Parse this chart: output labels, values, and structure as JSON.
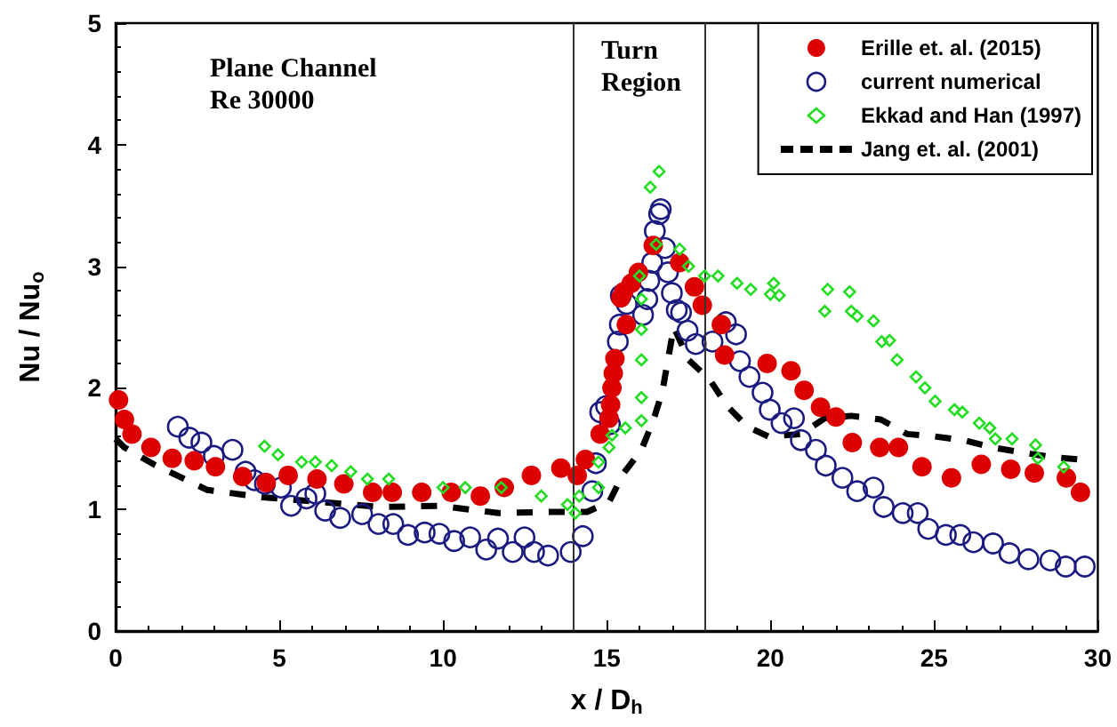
{
  "chart_data": {
    "type": "scatter",
    "xlabel": "x / D$_{h}$",
    "ylabel": "Nu / Nu$_{o}$",
    "xlim": [
      0,
      30
    ],
    "xticks": [
      0,
      5,
      10,
      15,
      20,
      25,
      30
    ],
    "ylim": [
      0,
      5
    ],
    "yticks": [
      0,
      1,
      2,
      3,
      4,
      5
    ],
    "grid": false,
    "legend": "top right",
    "annotations": [
      "Plane Channel\nRe 30000",
      "Turn\nRegion"
    ],
    "ref_lines": [
      {
        "axis": "x",
        "value": 14,
        "color": "#333333"
      },
      {
        "axis": "x",
        "value": 18,
        "color": "#333333"
      }
    ],
    "series": [
      {
        "name": "Erille et. al. (2015)",
        "type": "scatter",
        "marker": "circle",
        "color": "#dd0000",
        "x": [
          0.09,
          0.27,
          0.5,
          1.08,
          1.73,
          2.4,
          3.05,
          3.88,
          4.6,
          5.27,
          6.15,
          6.97,
          7.85,
          8.45,
          9.35,
          10.25,
          11.14,
          11.87,
          12.7,
          13.6,
          14.1,
          14.35,
          14.8,
          15.07,
          15.12,
          15.16,
          15.2,
          15.25,
          15.43,
          15.52,
          15.6,
          15.75,
          15.97,
          16.42,
          17.23,
          17.68,
          17.92,
          18.5,
          18.6,
          19.9,
          20.63,
          21.03,
          21.53,
          22.0,
          22.5,
          23.34,
          23.91,
          24.63,
          25.53,
          26.44,
          27.34,
          28.06,
          29.04,
          29.47
        ],
        "values": [
          1.9,
          1.74,
          1.62,
          1.51,
          1.42,
          1.4,
          1.35,
          1.27,
          1.22,
          1.28,
          1.25,
          1.21,
          1.14,
          1.14,
          1.14,
          1.14,
          1.11,
          1.18,
          1.28,
          1.34,
          1.28,
          1.41,
          1.62,
          1.75,
          1.86,
          2.0,
          2.12,
          2.24,
          2.74,
          2.79,
          2.52,
          2.86,
          2.95,
          3.17,
          3.03,
          2.83,
          2.68,
          2.52,
          2.27,
          2.2,
          2.14,
          1.98,
          1.84,
          1.76,
          1.55,
          1.51,
          1.51,
          1.35,
          1.26,
          1.37,
          1.33,
          1.3,
          1.26,
          1.14
        ]
      },
      {
        "name": "current numerical",
        "type": "scatter",
        "marker": "circle",
        "color": "#1a1a80",
        "x": [
          1.9,
          2.25,
          2.62,
          3.0,
          3.57,
          3.97,
          4.24,
          4.56,
          5.05,
          5.36,
          5.83,
          6.1,
          6.4,
          6.86,
          7.53,
          8.03,
          8.48,
          8.93,
          9.44,
          9.89,
          10.34,
          10.83,
          11.32,
          11.68,
          12.13,
          12.49,
          12.78,
          13.21,
          13.9,
          14.27,
          14.56,
          14.67,
          14.8,
          14.98,
          15.1,
          15.34,
          15.4,
          15.43,
          15.61,
          16.11,
          16.24,
          16.3,
          16.39,
          16.47,
          16.6,
          16.65,
          16.78,
          16.87,
          16.99,
          17.14,
          17.27,
          17.47,
          17.72,
          18.23,
          18.64,
          18.95,
          19.07,
          19.36,
          19.76,
          19.98,
          20.34,
          20.72,
          20.93,
          21.39,
          21.69,
          22.2,
          22.65,
          23.15,
          23.46,
          24.04,
          24.5,
          24.82,
          25.36,
          25.8,
          26.2,
          26.8,
          27.3,
          27.88,
          28.55,
          29.02,
          29.6
        ],
        "values": [
          1.68,
          1.59,
          1.55,
          1.44,
          1.49,
          1.31,
          1.24,
          1.21,
          1.18,
          1.03,
          1.09,
          1.13,
          0.99,
          0.93,
          0.96,
          0.88,
          0.88,
          0.79,
          0.81,
          0.8,
          0.74,
          0.77,
          0.67,
          0.76,
          0.65,
          0.77,
          0.65,
          0.62,
          0.65,
          0.78,
          1.15,
          1.38,
          1.8,
          1.85,
          1.7,
          2.38,
          2.52,
          2.76,
          2.69,
          2.6,
          2.73,
          2.88,
          3.03,
          3.29,
          3.43,
          3.47,
          3.15,
          2.95,
          2.78,
          2.64,
          2.62,
          2.47,
          2.36,
          2.38,
          2.54,
          2.44,
          2.22,
          2.09,
          1.96,
          1.82,
          1.71,
          1.75,
          1.57,
          1.49,
          1.36,
          1.26,
          1.15,
          1.18,
          1.02,
          0.97,
          0.97,
          0.84,
          0.79,
          0.79,
          0.73,
          0.72,
          0.64,
          0.59,
          0.58,
          0.53,
          0.53
        ]
      },
      {
        "name": "Ekkad and Han (1997)",
        "type": "scatter",
        "marker": "diamond",
        "color": "#22dd22",
        "x": [
          4.55,
          4.96,
          5.68,
          6.1,
          6.6,
          7.18,
          7.69,
          8.34,
          10.0,
          10.68,
          11.78,
          13.0,
          13.8,
          14.04,
          14.16,
          14.75,
          14.75,
          15.07,
          15.16,
          15.57,
          16.06,
          16.06,
          16.06,
          16.06,
          16.06,
          16.0,
          16.51,
          16.33,
          16.6,
          17.23,
          17.5,
          17.99,
          18.4,
          18.98,
          19.4,
          20.0,
          20.1,
          20.27,
          21.66,
          21.75,
          22.42,
          22.47,
          22.65,
          23.15,
          23.4,
          23.64,
          23.87,
          24.45,
          24.72,
          25.03,
          25.62,
          25.86,
          26.38,
          26.7,
          26.87,
          27.38,
          28.1,
          28.17,
          28.96
        ],
        "values": [
          1.52,
          1.45,
          1.39,
          1.39,
          1.36,
          1.31,
          1.25,
          1.25,
          1.18,
          1.18,
          1.18,
          1.11,
          1.04,
          0.97,
          1.11,
          1.18,
          1.39,
          1.51,
          1.61,
          1.67,
          1.73,
          1.92,
          2.23,
          2.48,
          2.73,
          2.92,
          3.18,
          3.65,
          3.78,
          3.14,
          3.0,
          2.92,
          2.92,
          2.86,
          2.81,
          2.77,
          2.86,
          2.76,
          2.63,
          2.81,
          2.79,
          2.63,
          2.59,
          2.55,
          2.38,
          2.39,
          2.23,
          2.09,
          2.0,
          1.89,
          1.82,
          1.8,
          1.71,
          1.67,
          1.58,
          1.58,
          1.53,
          1.42,
          1.35
        ]
      },
      {
        "name": "Jang et. al. (2001)",
        "type": "line",
        "marker": "none",
        "line_style": "dashed",
        "color": "#000000",
        "x": [
          0,
          0.27,
          1.17,
          2.8,
          4.5,
          6.3,
          8.1,
          9.9,
          11.7,
          13.35,
          14.4,
          15.07,
          15.52,
          16.06,
          16.42,
          16.7,
          16.87,
          17.05,
          17.5,
          18.14,
          18.68,
          19.3,
          19.94,
          20.93,
          21.66,
          22.47,
          23.37,
          24.18,
          25.03,
          25.9,
          26.77,
          27.67,
          28.6,
          29.47
        ],
        "values": [
          1.58,
          1.51,
          1.37,
          1.16,
          1.1,
          1.06,
          1.02,
          1.03,
          0.97,
          0.98,
          0.98,
          1.06,
          1.3,
          1.49,
          1.73,
          1.97,
          2.23,
          2.5,
          2.23,
          2.07,
          1.85,
          1.68,
          1.6,
          1.62,
          1.75,
          1.77,
          1.74,
          1.62,
          1.6,
          1.57,
          1.51,
          1.47,
          1.43,
          1.41
        ]
      }
    ]
  }
}
